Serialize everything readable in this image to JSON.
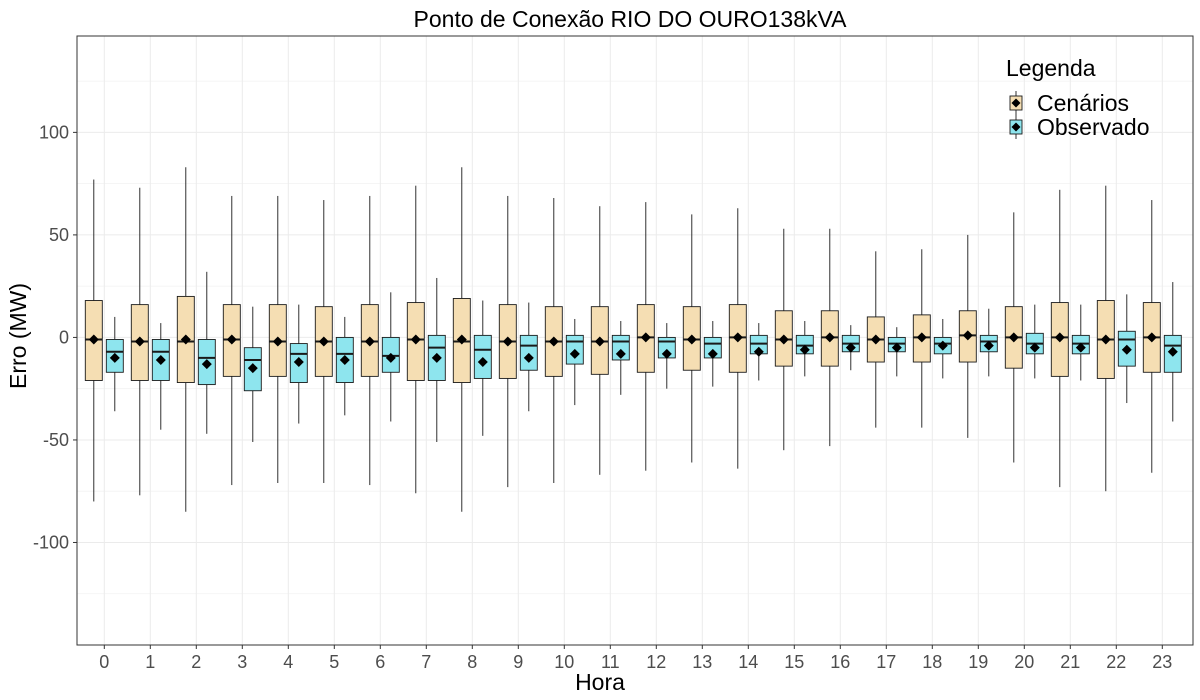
{
  "chart_data": {
    "type": "boxplot",
    "title": "Ponto de Conexão RIO DO OURO138kVA",
    "xlabel": "Hora",
    "ylabel": "Erro (MW)",
    "ylim": [
      -150,
      147
    ],
    "y_ticks": [
      -100,
      -50,
      0,
      50,
      100
    ],
    "x_ticks": [
      "0",
      "1",
      "2",
      "3",
      "4",
      "5",
      "6",
      "7",
      "8",
      "9",
      "10",
      "11",
      "12",
      "13",
      "14",
      "15",
      "16",
      "17",
      "18",
      "19",
      "20",
      "21",
      "22",
      "23"
    ],
    "grid": true,
    "legend": {
      "title": "Legenda",
      "position": "top-right"
    },
    "series": [
      {
        "name": "Cenários",
        "color": "#f5deb3",
        "stats": [
          {
            "hour": 0,
            "min": -80,
            "q1": -21,
            "median": -1,
            "q3": 18,
            "max": 77,
            "mean": -1
          },
          {
            "hour": 1,
            "min": -77,
            "q1": -21,
            "median": -2,
            "q3": 16,
            "max": 73,
            "mean": -2
          },
          {
            "hour": 2,
            "min": -85,
            "q1": -22,
            "median": -2,
            "q3": 20,
            "max": 83,
            "mean": -1
          },
          {
            "hour": 3,
            "min": -72,
            "q1": -19,
            "median": -1,
            "q3": 16,
            "max": 69,
            "mean": -1
          },
          {
            "hour": 4,
            "min": -71,
            "q1": -19,
            "median": -2,
            "q3": 16,
            "max": 69,
            "mean": -2
          },
          {
            "hour": 5,
            "min": -71,
            "q1": -19,
            "median": -2,
            "q3": 15,
            "max": 67,
            "mean": -2
          },
          {
            "hour": 6,
            "min": -72,
            "q1": -19,
            "median": -2,
            "q3": 16,
            "max": 69,
            "mean": -2
          },
          {
            "hour": 7,
            "min": -76,
            "q1": -21,
            "median": -1,
            "q3": 17,
            "max": 74,
            "mean": -1
          },
          {
            "hour": 8,
            "min": -85,
            "q1": -22,
            "median": -2,
            "q3": 19,
            "max": 83,
            "mean": -1
          },
          {
            "hour": 9,
            "min": -73,
            "q1": -20,
            "median": -2,
            "q3": 16,
            "max": 69,
            "mean": -2
          },
          {
            "hour": 10,
            "min": -71,
            "q1": -19,
            "median": -2,
            "q3": 15,
            "max": 68,
            "mean": -2
          },
          {
            "hour": 11,
            "min": -67,
            "q1": -18,
            "median": -2,
            "q3": 15,
            "max": 64,
            "mean": -2
          },
          {
            "hour": 12,
            "min": -65,
            "q1": -17,
            "median": 0,
            "q3": 16,
            "max": 66,
            "mean": 0
          },
          {
            "hour": 13,
            "min": -61,
            "q1": -16,
            "median": -1,
            "q3": 15,
            "max": 60,
            "mean": -1
          },
          {
            "hour": 14,
            "min": -64,
            "q1": -17,
            "median": 0,
            "q3": 16,
            "max": 63,
            "mean": 0
          },
          {
            "hour": 15,
            "min": -55,
            "q1": -14,
            "median": -1,
            "q3": 13,
            "max": 53,
            "mean": -1
          },
          {
            "hour": 16,
            "min": -53,
            "q1": -14,
            "median": 0,
            "q3": 13,
            "max": 53,
            "mean": 0
          },
          {
            "hour": 17,
            "min": -44,
            "q1": -12,
            "median": -1,
            "q3": 10,
            "max": 42,
            "mean": -1
          },
          {
            "hour": 18,
            "min": -44,
            "q1": -12,
            "median": 0,
            "q3": 11,
            "max": 43,
            "mean": 0
          },
          {
            "hour": 19,
            "min": -49,
            "q1": -12,
            "median": 1,
            "q3": 13,
            "max": 50,
            "mean": 1
          },
          {
            "hour": 20,
            "min": -61,
            "q1": -15,
            "median": 0,
            "q3": 15,
            "max": 61,
            "mean": 0
          },
          {
            "hour": 21,
            "min": -73,
            "q1": -19,
            "median": 0,
            "q3": 17,
            "max": 72,
            "mean": 0
          },
          {
            "hour": 22,
            "min": -75,
            "q1": -20,
            "median": -1,
            "q3": 18,
            "max": 74,
            "mean": -1
          },
          {
            "hour": 23,
            "min": -66,
            "q1": -17,
            "median": 0,
            "q3": 17,
            "max": 67,
            "mean": 0
          }
        ]
      },
      {
        "name": "Observado",
        "color": "#8ee5ee",
        "stats": [
          {
            "hour": 0,
            "min": -36,
            "q1": -17,
            "median": -7,
            "q3": -1,
            "max": 10,
            "mean": -10
          },
          {
            "hour": 1,
            "min": -45,
            "q1": -21,
            "median": -7,
            "q3": -1,
            "max": 7,
            "mean": -11
          },
          {
            "hour": 2,
            "min": -47,
            "q1": -23,
            "median": -10,
            "q3": -1,
            "max": 32,
            "mean": -13
          },
          {
            "hour": 3,
            "min": -51,
            "q1": -26,
            "median": -11,
            "q3": -5,
            "max": 15,
            "mean": -15
          },
          {
            "hour": 4,
            "min": -42,
            "q1": -22,
            "median": -8,
            "q3": -3,
            "max": 16,
            "mean": -12
          },
          {
            "hour": 5,
            "min": -38,
            "q1": -22,
            "median": -8,
            "q3": 0,
            "max": 10,
            "mean": -11
          },
          {
            "hour": 6,
            "min": -41,
            "q1": -17,
            "median": -9,
            "q3": 0,
            "max": 22,
            "mean": -10
          },
          {
            "hour": 7,
            "min": -51,
            "q1": -21,
            "median": -5,
            "q3": 1,
            "max": 29,
            "mean": -10
          },
          {
            "hour": 8,
            "min": -48,
            "q1": -20,
            "median": -6,
            "q3": 1,
            "max": 18,
            "mean": -12
          },
          {
            "hour": 9,
            "min": -36,
            "q1": -16,
            "median": -4,
            "q3": 1,
            "max": 17,
            "mean": -10
          },
          {
            "hour": 10,
            "min": -33,
            "q1": -13,
            "median": -2,
            "q3": 1,
            "max": 9,
            "mean": -8
          },
          {
            "hour": 11,
            "min": -28,
            "q1": -11,
            "median": -2,
            "q3": 1,
            "max": 8,
            "mean": -8
          },
          {
            "hour": 12,
            "min": -25,
            "q1": -10,
            "median": -2,
            "q3": 0,
            "max": 7,
            "mean": -8
          },
          {
            "hour": 13,
            "min": -24,
            "q1": -10,
            "median": -3,
            "q3": 0,
            "max": 8,
            "mean": -8
          },
          {
            "hour": 14,
            "min": -21,
            "q1": -8,
            "median": -3,
            "q3": 1,
            "max": 7,
            "mean": -7
          },
          {
            "hour": 15,
            "min": -19,
            "q1": -8,
            "median": -4,
            "q3": 1,
            "max": 8,
            "mean": -6
          },
          {
            "hour": 16,
            "min": -16,
            "q1": -7,
            "median": -3,
            "q3": 1,
            "max": 6,
            "mean": -5
          },
          {
            "hour": 17,
            "min": -19,
            "q1": -7,
            "median": -3,
            "q3": 0,
            "max": 5,
            "mean": -5
          },
          {
            "hour": 18,
            "min": -20,
            "q1": -8,
            "median": -3,
            "q3": 0,
            "max": 9,
            "mean": -4
          },
          {
            "hour": 19,
            "min": -19,
            "q1": -7,
            "median": -2,
            "q3": 1,
            "max": 14,
            "mean": -4
          },
          {
            "hour": 20,
            "min": -20,
            "q1": -8,
            "median": -3,
            "q3": 2,
            "max": 16,
            "mean": -5
          },
          {
            "hour": 21,
            "min": -21,
            "q1": -8,
            "median": -3,
            "q3": 1,
            "max": 16,
            "mean": -5
          },
          {
            "hour": 22,
            "min": -32,
            "q1": -14,
            "median": -1,
            "q3": 3,
            "max": 21,
            "mean": -6
          },
          {
            "hour": 23,
            "min": -41,
            "q1": -17,
            "median": -4,
            "q3": 1,
            "max": 27,
            "mean": -7
          }
        ]
      }
    ]
  }
}
